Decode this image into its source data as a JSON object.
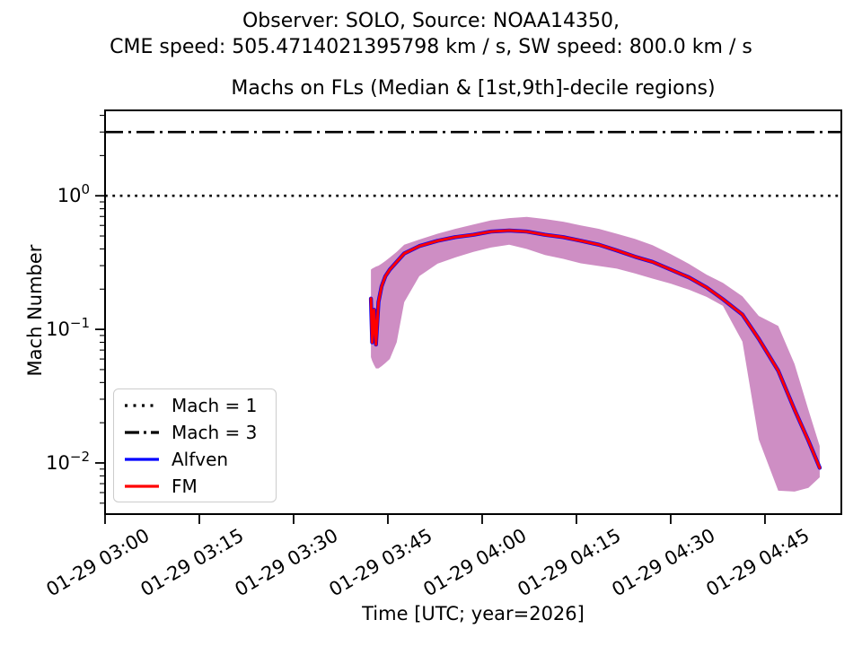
{
  "figure": {
    "suptitle_line1": "Observer: SOLO, Source: NOAA14350,",
    "suptitle_line2": "CME speed: 505.4714021395798 km / s, SW speed: 800.0 km / s",
    "observer": "SOLO",
    "source": "NOAA14350",
    "cme_speed_km_s": 505.4714021395798,
    "sw_speed_km_s": 800.0
  },
  "axes": {
    "title": "Machs on FLs (Median & [1st,9th]-decile regions)",
    "xlabel": "Time [UTC; year=2026]",
    "ylabel": "Mach Number"
  },
  "legend": {
    "entries": [
      {
        "label": "Mach = 1",
        "style": "dotted",
        "color": "#000000"
      },
      {
        "label": "Mach = 3",
        "style": "dashdot",
        "color": "#000000"
      },
      {
        "label": "Alfven",
        "style": "solid",
        "color": "#0000ff"
      },
      {
        "label": "FM",
        "style": "solid",
        "color": "#ff0000"
      }
    ]
  },
  "chart_data": {
    "type": "line",
    "title": "Machs on FLs (Median & [1st,9th]-decile regions)",
    "xlabel": "Time [UTC; year=2026]",
    "ylabel": "Mach Number",
    "x_axis": {
      "date": "01-29",
      "tick_minutes_after_0300": [
        0,
        15,
        30,
        45,
        60,
        75,
        90,
        105
      ],
      "tick_labels": [
        "01-29 03:00",
        "01-29 03:15",
        "01-29 03:30",
        "01-29 03:45",
        "01-29 04:00",
        "01-29 04:15",
        "01-29 04:30",
        "01-29 04:45"
      ],
      "range_minutes_after_0300": [
        0,
        117.15
      ],
      "label_rotation_deg": 30
    },
    "y_axis": {
      "scale": "log",
      "tick_values": [
        1,
        0.1,
        0.01
      ],
      "tick_labels": [
        {
          "base": "10",
          "exp": "0"
        },
        {
          "base": "10",
          "exp": "−1"
        },
        {
          "base": "10",
          "exp": "−2"
        }
      ],
      "range": [
        0.00414,
        4.36
      ],
      "minor_ticks": true
    },
    "reference_lines": [
      {
        "label": "Mach = 1",
        "value": 1,
        "style": "dotted",
        "color": "#000000"
      },
      {
        "label": "Mach = 3",
        "value": 3,
        "style": "dashdot",
        "color": "#000000"
      }
    ],
    "band_color": "#ce8ec4",
    "grid": false,
    "legend_position": "lower left",
    "series": [
      {
        "name": "Alfven",
        "color": "#0000ff",
        "note": "overplotted by FM curve; not separately visible except at band edges"
      },
      {
        "name": "FM",
        "color": "#ff0000",
        "minutes_after_0300": [
          42.3,
          42.5,
          42.8,
          43.1,
          43.5,
          44.0,
          44.6,
          45.3,
          46.4,
          47.6,
          50.0,
          52.9,
          55.7,
          58.6,
          61.4,
          64.3,
          67.1,
          70.0,
          72.9,
          75.7,
          78.6,
          81.4,
          84.3,
          87.1,
          90.0,
          92.9,
          95.7,
          98.3,
          101.4,
          104.0,
          107.1,
          109.7,
          111.9,
          113.7
        ],
        "median": [
          0.17,
          0.08,
          0.14,
          0.077,
          0.16,
          0.21,
          0.25,
          0.28,
          0.32,
          0.37,
          0.42,
          0.46,
          0.49,
          0.51,
          0.54,
          0.55,
          0.54,
          0.51,
          0.49,
          0.46,
          0.43,
          0.39,
          0.35,
          0.32,
          0.28,
          0.245,
          0.206,
          0.168,
          0.129,
          0.085,
          0.049,
          0.025,
          0.0147,
          0.0092
        ],
        "decile_9": [
          0.28,
          0.285,
          0.29,
          0.295,
          0.3,
          0.31,
          0.325,
          0.345,
          0.38,
          0.43,
          0.47,
          0.52,
          0.565,
          0.61,
          0.655,
          0.68,
          0.695,
          0.67,
          0.64,
          0.6,
          0.565,
          0.52,
          0.476,
          0.427,
          0.366,
          0.309,
          0.257,
          0.223,
          0.177,
          0.126,
          0.106,
          0.055,
          0.025,
          0.0134
        ],
        "decile_1": [
          0.062,
          0.058,
          0.054,
          0.051,
          0.051,
          0.053,
          0.056,
          0.06,
          0.08,
          0.16,
          0.25,
          0.31,
          0.345,
          0.38,
          0.41,
          0.43,
          0.4,
          0.36,
          0.337,
          0.312,
          0.298,
          0.285,
          0.262,
          0.24,
          0.22,
          0.198,
          0.175,
          0.15,
          0.081,
          0.015,
          0.0062,
          0.0061,
          0.0065,
          0.0078
        ]
      }
    ]
  }
}
